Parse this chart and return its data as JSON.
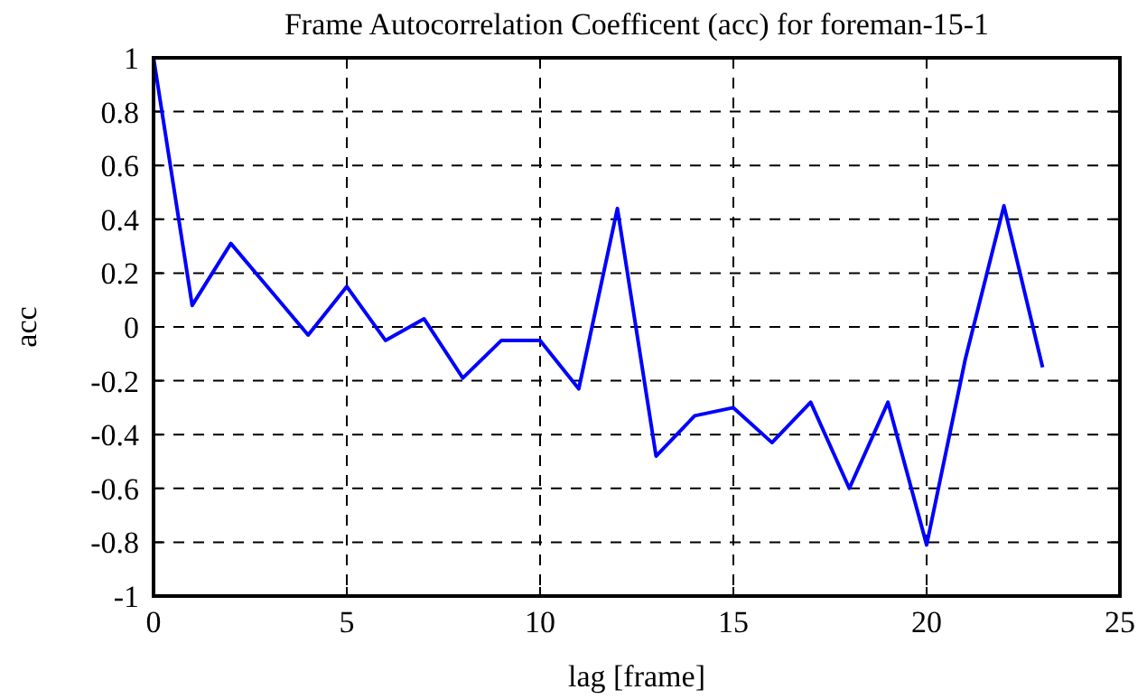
{
  "chart_data": {
    "type": "line",
    "title": "Frame Autocorrelation Coefficent (acc) for foreman-15-1",
    "xlabel": "lag [frame]",
    "ylabel": "acc",
    "x": [
      0,
      1,
      2,
      3,
      4,
      5,
      6,
      7,
      8,
      9,
      10,
      11,
      12,
      13,
      14,
      15,
      16,
      17,
      18,
      19,
      20,
      21,
      22,
      23
    ],
    "series": [
      {
        "color": "#0000ff",
        "values": [
          1,
          0.08,
          0.31,
          0.14,
          -0.03,
          0.15,
          -0.05,
          0.03,
          -0.19,
          -0.05,
          -0.05,
          -0.23,
          0.44,
          -0.48,
          -0.33,
          -0.3,
          -0.43,
          -0.28,
          -0.6,
          -0.28,
          -0.81,
          -0.12,
          0.45,
          -0.15
        ]
      }
    ],
    "xlim": [
      0,
      25
    ],
    "xticks": [
      0,
      5,
      10,
      15,
      20,
      25
    ],
    "ylim": [
      -1,
      1
    ],
    "yticks": [
      -1,
      -0.8,
      -0.6,
      -0.4,
      -0.2,
      0,
      0.2,
      0.4,
      0.6,
      0.8,
      1
    ],
    "grid": true,
    "marker": "none",
    "line_style": "solid"
  }
}
